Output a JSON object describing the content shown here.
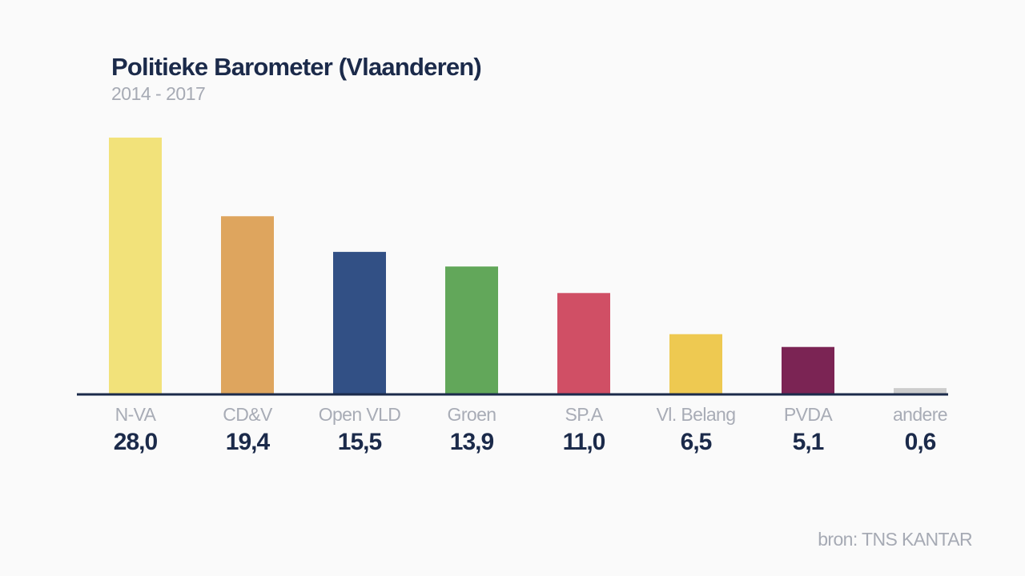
{
  "chart_data": {
    "type": "bar",
    "title": "Politieke Barometer (Vlaanderen)",
    "subtitle": "2014 - 2017",
    "categories": [
      "N-VA",
      "CD&V",
      "Open VLD",
      "Groen",
      "SP.A",
      "Vl. Belang",
      "PVDA",
      "andere"
    ],
    "values": [
      28.0,
      19.4,
      15.5,
      13.9,
      11.0,
      6.5,
      5.1,
      0.6
    ],
    "value_labels": [
      "28,0",
      "19,4",
      "15,5",
      "13,9",
      "11,0",
      "6,5",
      "5,1",
      "0,6"
    ],
    "colors": [
      "#f2e27a",
      "#dea55e",
      "#325085",
      "#62a75a",
      "#d04f65",
      "#eec951",
      "#7b2454",
      "#cccccc"
    ],
    "ylim": [
      0,
      28.0
    ],
    "grid": false,
    "legend": "none"
  },
  "source": "bron: TNS KANTAR",
  "colors": {
    "background": "#fafafa",
    "title": "#1b2a4a",
    "muted": "#a6aab4",
    "axis": "#1b2a4a"
  }
}
